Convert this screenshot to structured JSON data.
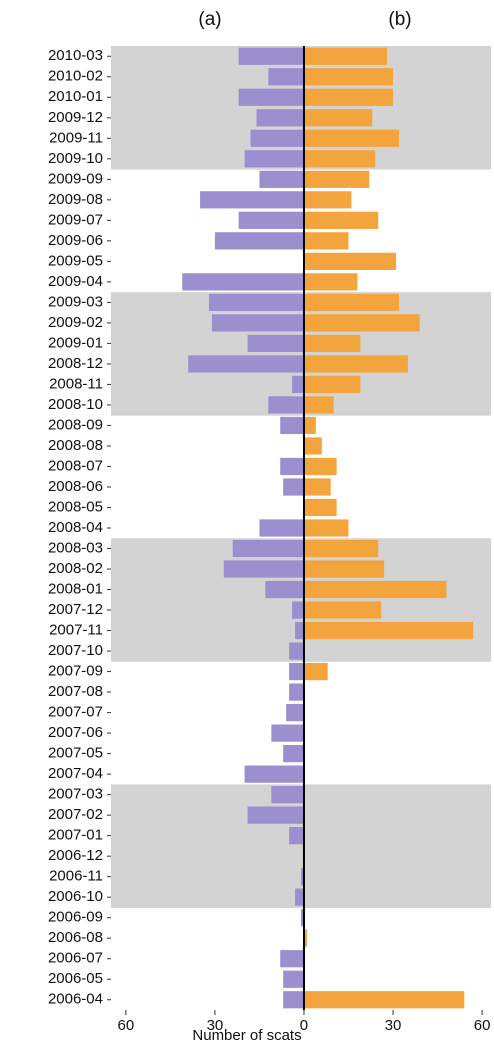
{
  "chart_data": {
    "type": "diverging-bar",
    "x_label": "Number of scats",
    "categories": [
      "2010-03",
      "2010-02",
      "2010-01",
      "2009-12",
      "2009-11",
      "2009-10",
      "2009-09",
      "2009-08",
      "2009-07",
      "2009-06",
      "2009-05",
      "2009-04",
      "2009-03",
      "2009-02",
      "2009-01",
      "2008-12",
      "2008-11",
      "2008-10",
      "2008-09",
      "2008-08",
      "2008-07",
      "2008-06",
      "2008-05",
      "2008-04",
      "2008-03",
      "2008-02",
      "2008-01",
      "2007-12",
      "2007-11",
      "2007-10",
      "2007-09",
      "2007-08",
      "2007-07",
      "2007-06",
      "2007-05",
      "2007-04",
      "2007-03",
      "2007-02",
      "2007-01",
      "2006-12",
      "2006-11",
      "2006-10",
      "2006-09",
      "2006-08",
      "2006-07",
      "2006-05",
      "2006-04"
    ],
    "series": [
      {
        "name": "(a)",
        "color": "#9b8fcf",
        "values": [
          -22,
          -12,
          -22,
          -16,
          -18,
          -20,
          -15,
          -35,
          -22,
          -30,
          0,
          -41,
          -32,
          -31,
          -19,
          -39,
          -4,
          -12,
          -8,
          0,
          -8,
          -7,
          0,
          -15,
          -24,
          -27,
          -13,
          -4,
          -3,
          -5,
          -5,
          -5,
          -6,
          -11,
          -7,
          -20,
          -11,
          -19,
          -5,
          0,
          -1,
          -3,
          -1,
          0,
          -8,
          -7,
          -7
        ]
      },
      {
        "name": "(b)",
        "color": "#f4a43c",
        "values": [
          28,
          30,
          30,
          23,
          32,
          24,
          22,
          16,
          25,
          15,
          31,
          18,
          32,
          39,
          19,
          35,
          19,
          10,
          4,
          6,
          11,
          9,
          11,
          15,
          25,
          27,
          48,
          26,
          57,
          0,
          8,
          0,
          0,
          0,
          0,
          0,
          0,
          0,
          0,
          0,
          0,
          0,
          0,
          1,
          0,
          0,
          54
        ]
      }
    ],
    "xlim": [
      -65,
      63
    ],
    "xticks": [
      {
        "value": -60,
        "label": "60"
      },
      {
        "value": -30,
        "label": "30"
      },
      0,
      30,
      60
    ]
  }
}
